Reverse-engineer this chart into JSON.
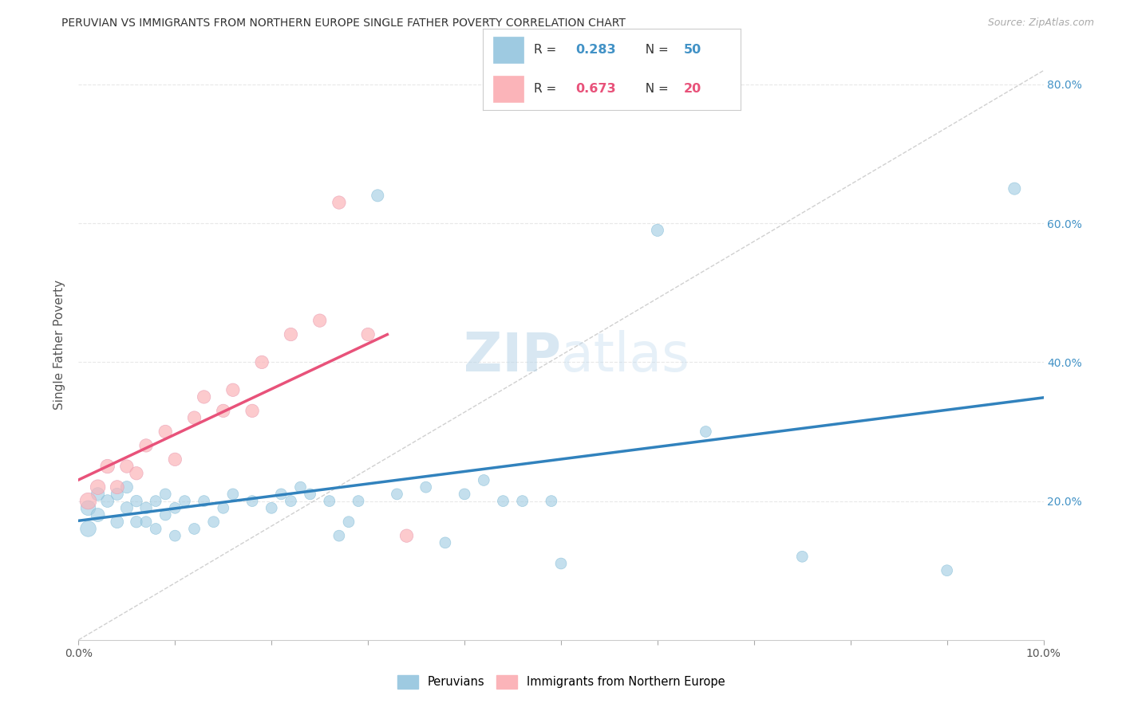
{
  "title": "PERUVIAN VS IMMIGRANTS FROM NORTHERN EUROPE SINGLE FATHER POVERTY CORRELATION CHART",
  "source": "Source: ZipAtlas.com",
  "ylabel": "Single Father Poverty",
  "xlim": [
    0.0,
    0.1
  ],
  "ylim": [
    0.0,
    0.85
  ],
  "legend_label1": "Peruvians",
  "legend_label2": "Immigrants from Northern Europe",
  "R1": "0.283",
  "N1": "50",
  "R2": "0.673",
  "N2": "20",
  "color_blue": "#9ecae1",
  "color_pink": "#fbb4b9",
  "color_blue_line": "#3182bd",
  "color_pink_line": "#e8527a",
  "color_blue_text": "#4292c6",
  "color_pink_text": "#e8527a",
  "color_diag": "#d0d0d0",
  "color_grid": "#e8e8e8",
  "peruvians_x": [
    0.001,
    0.001,
    0.002,
    0.002,
    0.003,
    0.004,
    0.004,
    0.005,
    0.005,
    0.006,
    0.006,
    0.007,
    0.007,
    0.008,
    0.008,
    0.009,
    0.009,
    0.01,
    0.01,
    0.011,
    0.012,
    0.013,
    0.014,
    0.015,
    0.016,
    0.018,
    0.02,
    0.021,
    0.022,
    0.023,
    0.024,
    0.026,
    0.027,
    0.028,
    0.029,
    0.031,
    0.033,
    0.036,
    0.038,
    0.04,
    0.042,
    0.044,
    0.046,
    0.049,
    0.05,
    0.06,
    0.065,
    0.075,
    0.09,
    0.097
  ],
  "peruvians_y": [
    0.16,
    0.19,
    0.18,
    0.21,
    0.2,
    0.17,
    0.21,
    0.19,
    0.22,
    0.17,
    0.2,
    0.19,
    0.17,
    0.16,
    0.2,
    0.18,
    0.21,
    0.19,
    0.15,
    0.2,
    0.16,
    0.2,
    0.17,
    0.19,
    0.21,
    0.2,
    0.19,
    0.21,
    0.2,
    0.22,
    0.21,
    0.2,
    0.15,
    0.17,
    0.2,
    0.64,
    0.21,
    0.22,
    0.14,
    0.21,
    0.23,
    0.2,
    0.2,
    0.2,
    0.11,
    0.59,
    0.3,
    0.12,
    0.1,
    0.65
  ],
  "peruvians_size": [
    200,
    180,
    150,
    140,
    130,
    130,
    120,
    120,
    120,
    110,
    110,
    110,
    100,
    100,
    100,
    100,
    100,
    100,
    100,
    100,
    100,
    100,
    100,
    100,
    100,
    100,
    100,
    100,
    100,
    100,
    100,
    100,
    100,
    100,
    100,
    120,
    100,
    100,
    100,
    100,
    100,
    100,
    100,
    100,
    100,
    120,
    100,
    100,
    100,
    120
  ],
  "northern_x": [
    0.001,
    0.002,
    0.003,
    0.004,
    0.005,
    0.006,
    0.007,
    0.009,
    0.01,
    0.012,
    0.013,
    0.015,
    0.016,
    0.018,
    0.019,
    0.022,
    0.025,
    0.027,
    0.03,
    0.034
  ],
  "northern_y": [
    0.2,
    0.22,
    0.25,
    0.22,
    0.25,
    0.24,
    0.28,
    0.3,
    0.26,
    0.32,
    0.35,
    0.33,
    0.36,
    0.33,
    0.4,
    0.44,
    0.46,
    0.63,
    0.44,
    0.15
  ],
  "northern_size": [
    220,
    180,
    160,
    150,
    140,
    140,
    140,
    140,
    140,
    140,
    140,
    140,
    140,
    140,
    140,
    140,
    140,
    140,
    140,
    140
  ]
}
